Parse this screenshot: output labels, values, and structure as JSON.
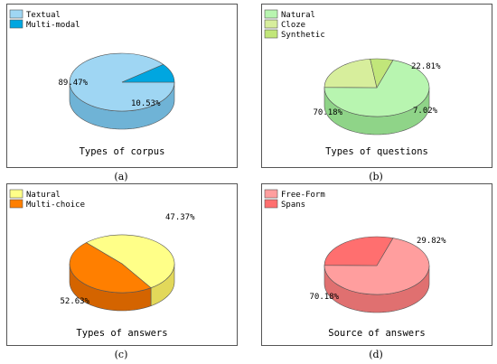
{
  "chart_data": [
    {
      "type": "pie",
      "panel_label": "(a)",
      "title": "Types of corpus",
      "slices": [
        {
          "name": "Textual",
          "value": 89.47,
          "label": "89.47%",
          "color": "#9fd6f3",
          "dark": "#6fb3d6"
        },
        {
          "name": "Multi-modal",
          "value": 10.53,
          "label": "10.53%",
          "color": "#00a6e0",
          "dark": "#0a84b3"
        }
      ],
      "legend_position": "top-left"
    },
    {
      "type": "pie",
      "panel_label": "(b)",
      "title": "Types of questions",
      "slices": [
        {
          "name": "Natural",
          "value": 70.18,
          "label": "70.18%",
          "color": "#b8f5b0",
          "dark": "#8fd488"
        },
        {
          "name": "Cloze",
          "value": 22.81,
          "label": "22.81%",
          "color": "#d7ee9c",
          "dark": "#b3cf6f"
        },
        {
          "name": "Synthetic",
          "value": 7.02,
          "label": "7.02%",
          "color": "#c1e67a",
          "dark": "#97c24a"
        }
      ],
      "legend_position": "top-left"
    },
    {
      "type": "pie",
      "panel_label": "(c)",
      "title": "Types of answers",
      "slices": [
        {
          "name": "Natural",
          "value": 52.63,
          "label": "52.63%",
          "color": "#ffff88",
          "dark": "#e2d85a"
        },
        {
          "name": "Multi-choice",
          "value": 47.37,
          "label": "47.37%",
          "color": "#ff7f00",
          "dark": "#d46400"
        }
      ],
      "legend_position": "top-left"
    },
    {
      "type": "pie",
      "panel_label": "(d)",
      "title": "Source of answers",
      "slices": [
        {
          "name": "Free-Form",
          "value": 70.18,
          "label": "70.18%",
          "color": "#ff9e9e",
          "dark": "#e07070"
        },
        {
          "name": "Spans",
          "value": 29.82,
          "label": "29.82%",
          "color": "#ff6f6f",
          "dark": "#d84848"
        }
      ],
      "legend_position": "top-left"
    }
  ]
}
